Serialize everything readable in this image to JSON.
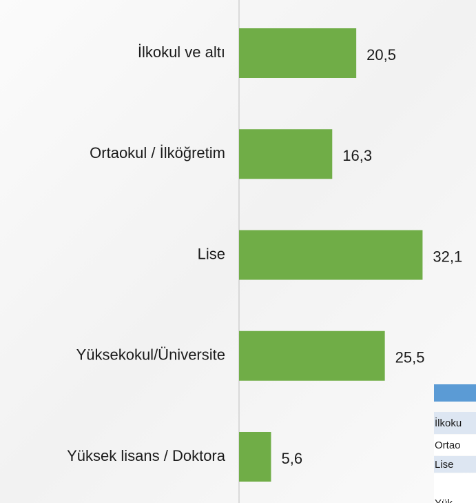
{
  "chart_data": {
    "type": "hbar",
    "categories": [
      "İlkokul ve altı",
      "Ortaokul / İlköğretim",
      "Lise",
      "Yüksekokul/Üniversite",
      "Yüksek lisans / Doktora"
    ],
    "values": [
      20.5,
      16.3,
      32.1,
      25.5,
      5.6
    ],
    "value_labels": [
      "20,5",
      "16,3",
      "32,1",
      "25,5",
      "5,6"
    ],
    "color": "#70ad47",
    "xlim": [
      0,
      40
    ]
  },
  "table": {
    "rows": [
      "İlkoku",
      "Ortao",
      "Lise",
      "Yük"
    ]
  }
}
